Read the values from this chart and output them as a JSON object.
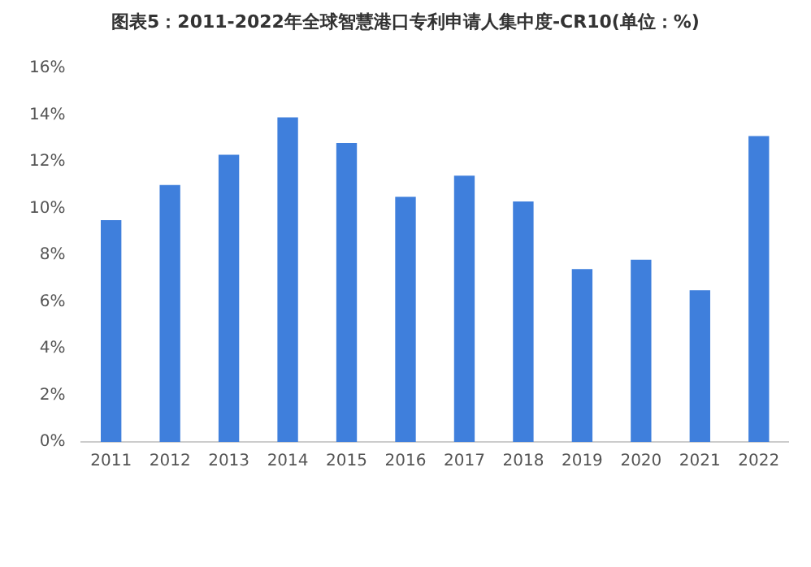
{
  "chart_data": {
    "type": "bar",
    "title": "图表5：2011-2022年全球智慧港口专利申请人集中度-CR10(单位：%)",
    "categories": [
      "2011",
      "2012",
      "2013",
      "2014",
      "2015",
      "2016",
      "2017",
      "2018",
      "2019",
      "2020",
      "2021",
      "2022"
    ],
    "values": [
      9.5,
      11.0,
      12.3,
      13.9,
      12.8,
      10.5,
      11.4,
      10.3,
      7.4,
      7.8,
      6.5,
      13.1
    ],
    "color": "#3f7fdc",
    "ylim": [
      0,
      16
    ],
    "yticks": [
      {
        "value": 0,
        "label": "0%"
      },
      {
        "value": 2,
        "label": "2%"
      },
      {
        "value": 4,
        "label": "4%"
      },
      {
        "value": 6,
        "label": "6%"
      },
      {
        "value": 8,
        "label": "8%"
      },
      {
        "value": 10,
        "label": "10%"
      },
      {
        "value": 12,
        "label": "12%"
      },
      {
        "value": 14,
        "label": "14%"
      },
      {
        "value": 16,
        "label": "16%"
      }
    ],
    "grid": false,
    "legend": false
  }
}
